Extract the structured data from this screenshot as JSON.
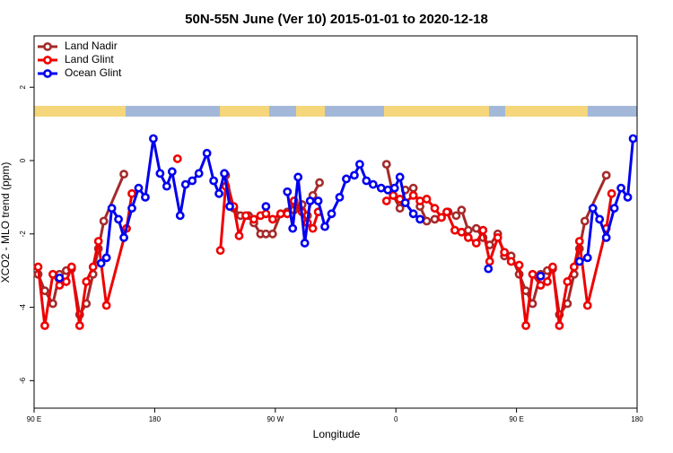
{
  "chart_data": {
    "type": "line",
    "title": "50N-55N June (Ver 10)   2015-01-01 to 2020-12-18",
    "x_label": "Longitude",
    "y_label": "XCO2 - MLO trend (ppm)",
    "xlim": [
      -270,
      180
    ],
    "ylim": [
      -6.75,
      3.4
    ],
    "xticks": [
      {
        "value": -270,
        "label": "90 E"
      },
      {
        "value": -180,
        "label": "180"
      },
      {
        "value": -90,
        "label": "90 W"
      },
      0,
      {
        "value": 90,
        "label": "90 E"
      },
      180
    ],
    "yticks": [
      -6,
      -4,
      -2,
      0,
      2
    ],
    "legend": "top-left",
    "series": [
      {
        "name": "Land Nadir",
        "color": "#a52a2a",
        "x": [
          -267,
          -262,
          -256,
          -251,
          -246,
          -242,
          -236,
          -231,
          -226,
          -222,
          -218,
          -203,
          null,
          -127,
          -121,
          -116,
          -110,
          -106,
          -101,
          -97,
          -92,
          -86,
          -81,
          -76,
          -70,
          -66,
          -62,
          -57,
          null,
          -7,
          -2,
          3,
          7,
          13,
          18,
          23,
          29,
          34,
          39,
          45,
          49,
          54,
          60,
          65,
          70,
          76,
          81,
          86,
          92,
          97,
          102,
          108,
          113,
          117,
          122,
          128,
          133,
          137,
          141,
          157
        ],
        "values": [
          -3.1,
          -3.55,
          -3.9,
          -3.1,
          -3.0,
          -2.95,
          -4.2,
          -3.9,
          -3.1,
          -2.4,
          -1.65,
          -0.37,
          null,
          -0.4,
          -1.3,
          -1.5,
          -1.5,
          -1.7,
          -2.0,
          -2.0,
          -2.0,
          -1.45,
          -1.4,
          -1.35,
          -1.2,
          -1.5,
          -0.95,
          -0.6,
          null,
          -0.1,
          -0.95,
          -1.3,
          -0.8,
          -0.75,
          -1.25,
          -1.65,
          -1.6,
          -1.55,
          -1.4,
          -1.5,
          -1.35,
          -1.9,
          -1.85,
          -2.1,
          -2.3,
          -2.0,
          -2.6,
          -2.6,
          -3.1,
          -3.55,
          -3.9,
          -3.1,
          -3.0,
          -2.95,
          -4.2,
          -3.9,
          -3.1,
          -2.4,
          -1.65,
          -0.4
        ]
      },
      {
        "name": "Land Glint",
        "color": "#ee0000",
        "x": [
          -267,
          -262,
          -256,
          -251,
          -246,
          -242,
          -236,
          -231,
          -226,
          -222,
          -216,
          -201,
          -197,
          null,
          -163,
          null,
          -131,
          -127,
          -121,
          -117,
          -112,
          -106,
          -101,
          -97,
          -92,
          -86,
          -81,
          -76,
          -70,
          -66,
          -62,
          -58,
          null,
          -7,
          -2,
          3,
          7,
          13,
          18,
          23,
          29,
          34,
          38,
          44,
          49,
          54,
          60,
          65,
          70,
          76,
          81,
          86,
          92,
          97,
          102,
          108,
          113,
          117,
          122,
          128,
          133,
          137,
          143,
          157,
          161
        ],
        "values": [
          -2.9,
          -4.5,
          -3.1,
          -3.4,
          -3.3,
          -2.9,
          -4.5,
          -3.3,
          -2.9,
          -2.2,
          -3.95,
          -1.85,
          -0.9,
          null,
          0.05,
          null,
          -2.45,
          -0.7,
          -1.25,
          -2.05,
          -1.5,
          -1.6,
          -1.5,
          -1.45,
          -1.6,
          -1.45,
          -1.45,
          -1.1,
          -1.4,
          -1.7,
          -1.85,
          -1.4,
          null,
          -1.1,
          -0.95,
          -1.05,
          -1.15,
          -0.95,
          -1.1,
          -1.05,
          -1.3,
          -1.55,
          -1.4,
          -1.9,
          -1.95,
          -2.1,
          -2.25,
          -1.9,
          -2.75,
          -2.1,
          -2.5,
          -2.75,
          -2.85,
          -4.5,
          -3.1,
          -3.4,
          -3.3,
          -2.9,
          -4.5,
          -3.3,
          -2.9,
          -2.2,
          -3.95,
          -1.85,
          -0.9
        ]
      },
      {
        "name": "Ocean Glint",
        "color": "#0000ee",
        "x": [
          -251,
          null,
          -220,
          -216,
          -212,
          -207,
          -203,
          -197,
          -192,
          -187,
          -181,
          -176,
          -171,
          -167,
          -161,
          -157,
          -152,
          -147,
          -141,
          -136,
          -132,
          -128,
          -124,
          null,
          -97,
          null,
          -81,
          -77,
          -73,
          -68,
          -64,
          -58,
          -53,
          -48,
          -42,
          -37,
          -31,
          -27,
          -22,
          -17,
          -11,
          -6,
          -1,
          3,
          7,
          13,
          18,
          null,
          69,
          null,
          108,
          null,
          137,
          143,
          147,
          152,
          157,
          163,
          168,
          173,
          177
        ],
        "values": [
          -3.2,
          null,
          -2.8,
          -2.65,
          -1.3,
          -1.6,
          -2.1,
          -1.3,
          -0.75,
          -1.0,
          0.6,
          -0.35,
          -0.7,
          -0.3,
          -1.5,
          -0.65,
          -0.55,
          -0.35,
          0.2,
          -0.55,
          -0.9,
          -0.35,
          -1.25,
          null,
          -1.25,
          null,
          -0.85,
          -1.85,
          -0.45,
          -2.25,
          -1.1,
          -1.1,
          -1.8,
          -1.45,
          -1.0,
          -0.5,
          -0.4,
          -0.1,
          -0.55,
          -0.65,
          -0.75,
          -0.8,
          -0.75,
          -0.45,
          -1.15,
          -1.45,
          -1.6,
          null,
          -2.95,
          null,
          -3.15,
          null,
          -2.75,
          -2.65,
          -1.3,
          -1.6,
          -2.1,
          -1.3,
          -0.75,
          -1.0,
          0.6
        ]
      }
    ]
  }
}
